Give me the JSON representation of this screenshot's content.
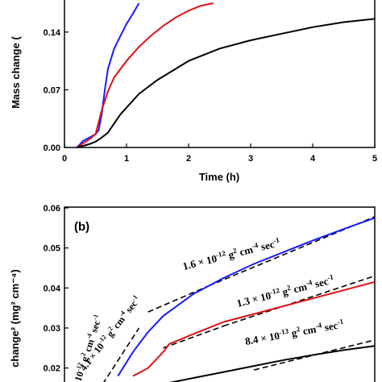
{
  "chart_data": [
    {
      "type": "line",
      "panel": "a",
      "xlabel": "Time (h)",
      "ylabel": "Mass change (",
      "xlim": [
        0,
        5
      ],
      "ylim": [
        0,
        0.175
      ],
      "xticks": [
        "0",
        "1",
        "2",
        "3",
        "4",
        "5"
      ],
      "yticks": [
        "0.00",
        "0.07",
        "0.14"
      ],
      "ytick_values": [
        0,
        0.07,
        0.14
      ],
      "grid": false,
      "series": [
        {
          "color": "#1a1aff",
          "x": [
            0.2,
            0.25,
            0.3,
            0.4,
            0.5,
            0.55,
            0.6,
            0.65,
            0.7,
            0.8,
            0.9,
            1.0,
            1.1,
            1.2
          ],
          "y": [
            0,
            0.004,
            0.008,
            0.012,
            0.016,
            0.021,
            0.04,
            0.07,
            0.095,
            0.12,
            0.135,
            0.15,
            0.162,
            0.175
          ]
        },
        {
          "color": "#e01010",
          "x": [
            0.2,
            0.3,
            0.4,
            0.5,
            0.6,
            0.7,
            0.8,
            1.0,
            1.2,
            1.4,
            1.6,
            1.8,
            2.0,
            2.2,
            2.4
          ],
          "y": [
            0,
            0.005,
            0.01,
            0.016,
            0.045,
            0.068,
            0.085,
            0.105,
            0.122,
            0.136,
            0.148,
            0.158,
            0.166,
            0.172,
            0.175
          ]
        },
        {
          "color": "#000000",
          "x": [
            0.2,
            0.3,
            0.4,
            0.5,
            0.6,
            0.7,
            0.9,
            1.2,
            1.5,
            2.0,
            2.5,
            3.0,
            3.5,
            4.0,
            4.5,
            5.0
          ],
          "y": [
            0,
            0.002,
            0.004,
            0.007,
            0.012,
            0.018,
            0.04,
            0.065,
            0.082,
            0.105,
            0.12,
            0.13,
            0.138,
            0.146,
            0.152,
            0.156
          ]
        }
      ]
    },
    {
      "type": "line",
      "panel": "b",
      "panel_label": "(b)",
      "ylabel": "change² (mg² cm⁻⁴)",
      "ylim": [
        0.016,
        0.06
      ],
      "yticks": [
        "0.06",
        "0.05",
        "0.04",
        "0.03",
        "0.02"
      ],
      "ytick_values": [
        0.06,
        0.05,
        0.04,
        0.03,
        0.02
      ],
      "grid": false,
      "series": [
        {
          "color": "#1a1aff",
          "x": [
            0.15,
            0.2,
            0.25,
            0.3,
            0.4,
            0.5,
            0.6,
            0.7,
            0.8,
            0.9,
            1.0
          ],
          "y": [
            0.018,
            0.024,
            0.029,
            0.033,
            0.0385,
            0.0425,
            0.046,
            0.049,
            0.052,
            0.0548,
            0.0575
          ]
        },
        {
          "color": "#e01010",
          "x": [
            0.2,
            0.25,
            0.3,
            0.32,
            0.4,
            0.5,
            0.6,
            0.7,
            0.8,
            0.9,
            1.0
          ],
          "y": [
            0.018,
            0.02,
            0.024,
            0.026,
            0.0285,
            0.0315,
            0.0335,
            0.0355,
            0.0375,
            0.0395,
            0.0415
          ]
        },
        {
          "color": "#000000",
          "x": [
            0.3,
            0.4,
            0.5,
            0.6,
            0.7,
            0.8,
            0.9,
            1.0
          ],
          "y": [
            0.016,
            0.0175,
            0.019,
            0.0205,
            0.022,
            0.0233,
            0.0245,
            0.0255
          ]
        }
      ],
      "fits": [
        {
          "x": [
            0.1,
            0.22
          ],
          "y": [
            0.016,
            0.03
          ]
        },
        {
          "x": [
            0.25,
            0.45
          ],
          "y": [
            0.034,
            0.0405
          ]
        },
        {
          "x": [
            0.45,
            1.0
          ],
          "y": [
            0.0405,
            0.0578
          ]
        },
        {
          "x": [
            0.3,
            0.5
          ],
          "y": [
            0.025,
            0.0305
          ]
        },
        {
          "x": [
            0.5,
            1.0
          ],
          "y": [
            0.0305,
            0.043
          ]
        },
        {
          "x": [
            0.6,
            1.0
          ],
          "y": [
            0.0195,
            0.027
          ]
        }
      ],
      "annotations": [
        {
          "base": "1.6 × 10",
          "exp": "-12",
          "unit": " g",
          "unit_exp": "2",
          "unit2": " cm",
          "unit2_exp": "-4",
          "unit3": " sec",
          "unit3_exp": "-1"
        },
        {
          "base": "1.3 × 10",
          "exp": "-12",
          "unit": " g",
          "unit_exp": "2",
          "unit2": " cm",
          "unit2_exp": "-4",
          "unit3": " sec",
          "unit3_exp": "-1"
        },
        {
          "base": "8.4 × 10",
          "exp": "-13",
          "unit": " g",
          "unit_exp": "2",
          "unit2": " cm",
          "unit2_exp": "-4",
          "unit3": " sec",
          "unit3_exp": "-1"
        },
        {
          "base": "4.1 × 10",
          "exp": "-12",
          "unit": " g",
          "unit_exp": "2",
          "unit2": " cm",
          "unit2_exp": "-4",
          "unit3": " sec",
          "unit3_exp": "-1"
        },
        {
          "base": "10",
          "exp": "-12",
          "unit": " g",
          "unit_exp": "2",
          "unit2": " cm",
          "unit2_exp": "-4",
          "unit3": " sec",
          "unit3_exp": "-1"
        }
      ]
    }
  ]
}
